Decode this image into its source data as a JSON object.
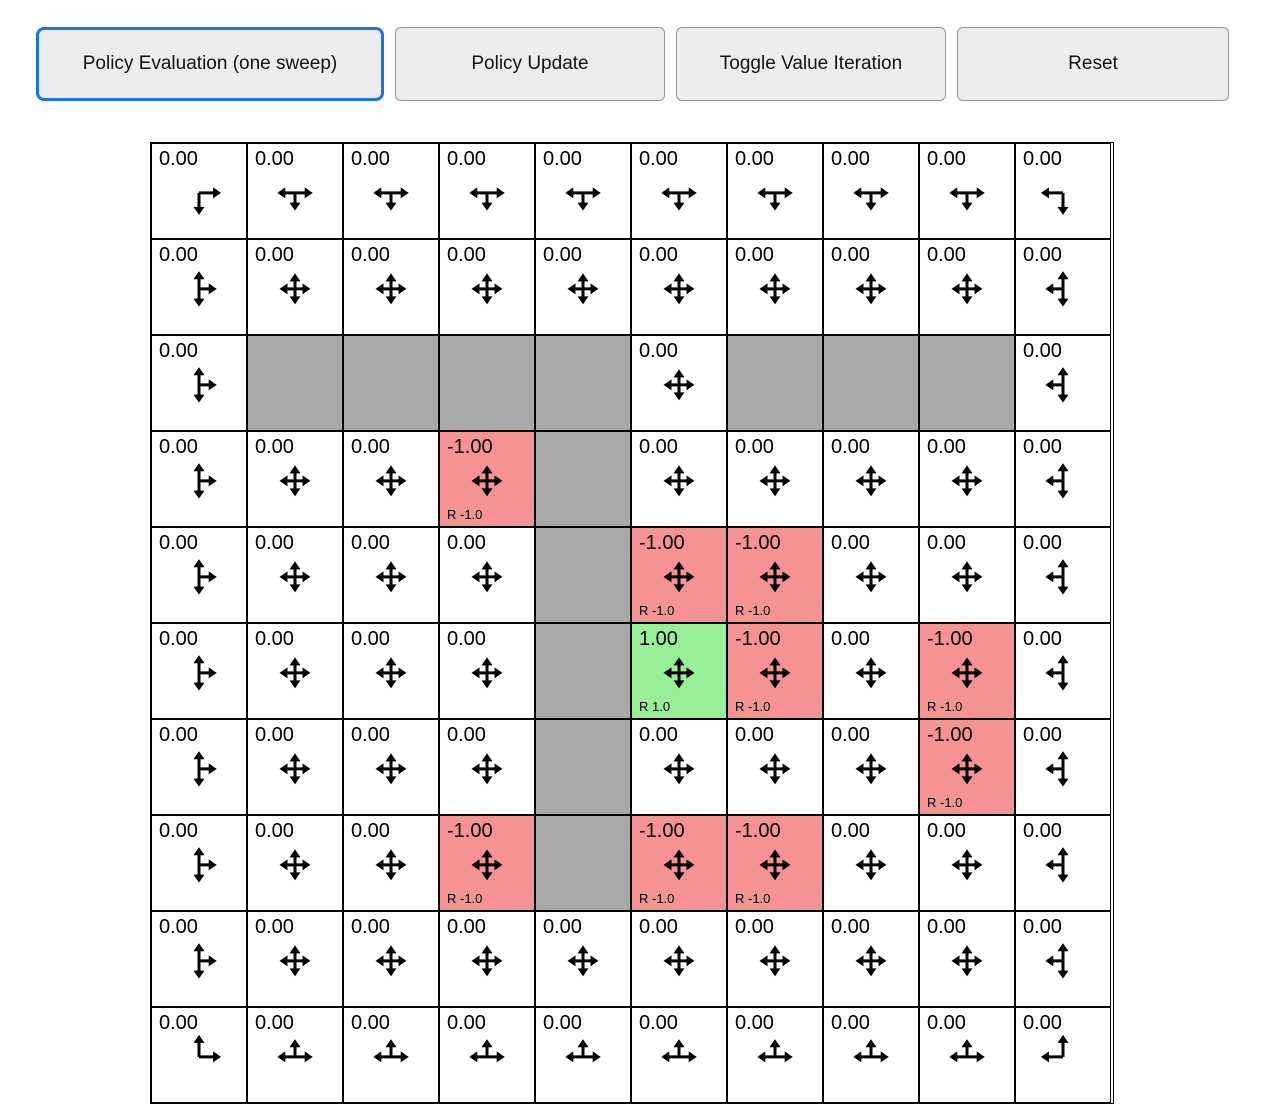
{
  "toolbar": {
    "buttons": [
      {
        "label": "Policy Evaluation (one sweep)",
        "focused": true
      },
      {
        "label": "Policy Update",
        "focused": false
      },
      {
        "label": "Toggle Value Iteration",
        "focused": false
      },
      {
        "label": "Reset",
        "focused": false
      }
    ]
  },
  "colors": {
    "accent_focus": "#1a73e8",
    "wall": "#a9a9a9",
    "negative_cell": "#f59393",
    "positive_cell": "#97ef97",
    "grid_line": "#000000"
  },
  "grid": {
    "rows": 10,
    "cols": 10,
    "cells": [
      [
        {
          "v": "0.00",
          "dirs": "DR"
        },
        {
          "v": "0.00",
          "dirs": "DLR"
        },
        {
          "v": "0.00",
          "dirs": "DLR"
        },
        {
          "v": "0.00",
          "dirs": "DLR"
        },
        {
          "v": "0.00",
          "dirs": "DLR"
        },
        {
          "v": "0.00",
          "dirs": "DLR"
        },
        {
          "v": "0.00",
          "dirs": "DLR"
        },
        {
          "v": "0.00",
          "dirs": "DLR"
        },
        {
          "v": "0.00",
          "dirs": "DLR"
        },
        {
          "v": "0.00",
          "dirs": "DL"
        }
      ],
      [
        {
          "v": "0.00",
          "dirs": "UDR"
        },
        {
          "v": "0.00",
          "dirs": "UDLR"
        },
        {
          "v": "0.00",
          "dirs": "UDLR"
        },
        {
          "v": "0.00",
          "dirs": "UDLR"
        },
        {
          "v": "0.00",
          "dirs": "UDLR"
        },
        {
          "v": "0.00",
          "dirs": "UDLR"
        },
        {
          "v": "0.00",
          "dirs": "UDLR"
        },
        {
          "v": "0.00",
          "dirs": "UDLR"
        },
        {
          "v": "0.00",
          "dirs": "UDLR"
        },
        {
          "v": "0.00",
          "dirs": "UDL"
        }
      ],
      [
        {
          "v": "0.00",
          "dirs": "UDR"
        },
        {
          "wall": true
        },
        {
          "wall": true
        },
        {
          "wall": true
        },
        {
          "wall": true
        },
        {
          "v": "0.00",
          "dirs": "UDLR"
        },
        {
          "wall": true
        },
        {
          "wall": true
        },
        {
          "wall": true
        },
        {
          "v": "0.00",
          "dirs": "UDL"
        }
      ],
      [
        {
          "v": "0.00",
          "dirs": "UDR"
        },
        {
          "v": "0.00",
          "dirs": "UDLR"
        },
        {
          "v": "0.00",
          "dirs": "UDLR"
        },
        {
          "v": "-1.00",
          "dirs": "UDLR",
          "bg": "neg",
          "rw": "R -1.0"
        },
        {
          "wall": true
        },
        {
          "v": "0.00",
          "dirs": "UDLR"
        },
        {
          "v": "0.00",
          "dirs": "UDLR"
        },
        {
          "v": "0.00",
          "dirs": "UDLR"
        },
        {
          "v": "0.00",
          "dirs": "UDLR"
        },
        {
          "v": "0.00",
          "dirs": "UDL"
        }
      ],
      [
        {
          "v": "0.00",
          "dirs": "UDR"
        },
        {
          "v": "0.00",
          "dirs": "UDLR"
        },
        {
          "v": "0.00",
          "dirs": "UDLR"
        },
        {
          "v": "0.00",
          "dirs": "UDLR"
        },
        {
          "wall": true
        },
        {
          "v": "-1.00",
          "dirs": "UDLR",
          "bg": "neg",
          "rw": "R -1.0"
        },
        {
          "v": "-1.00",
          "dirs": "UDLR",
          "bg": "neg",
          "rw": "R -1.0"
        },
        {
          "v": "0.00",
          "dirs": "UDLR"
        },
        {
          "v": "0.00",
          "dirs": "UDLR"
        },
        {
          "v": "0.00",
          "dirs": "UDL"
        }
      ],
      [
        {
          "v": "0.00",
          "dirs": "UDR"
        },
        {
          "v": "0.00",
          "dirs": "UDLR"
        },
        {
          "v": "0.00",
          "dirs": "UDLR"
        },
        {
          "v": "0.00",
          "dirs": "UDLR"
        },
        {
          "wall": true
        },
        {
          "v": "1.00",
          "dirs": "UDLR",
          "bg": "pos",
          "rw": "R 1.0"
        },
        {
          "v": "-1.00",
          "dirs": "UDLR",
          "bg": "neg",
          "rw": "R -1.0"
        },
        {
          "v": "0.00",
          "dirs": "UDLR"
        },
        {
          "v": "-1.00",
          "dirs": "UDLR",
          "bg": "neg",
          "rw": "R -1.0"
        },
        {
          "v": "0.00",
          "dirs": "UDL"
        }
      ],
      [
        {
          "v": "0.00",
          "dirs": "UDR"
        },
        {
          "v": "0.00",
          "dirs": "UDLR"
        },
        {
          "v": "0.00",
          "dirs": "UDLR"
        },
        {
          "v": "0.00",
          "dirs": "UDLR"
        },
        {
          "wall": true
        },
        {
          "v": "0.00",
          "dirs": "UDLR"
        },
        {
          "v": "0.00",
          "dirs": "UDLR"
        },
        {
          "v": "0.00",
          "dirs": "UDLR"
        },
        {
          "v": "-1.00",
          "dirs": "UDLR",
          "bg": "neg",
          "rw": "R -1.0"
        },
        {
          "v": "0.00",
          "dirs": "UDL"
        }
      ],
      [
        {
          "v": "0.00",
          "dirs": "UDR"
        },
        {
          "v": "0.00",
          "dirs": "UDLR"
        },
        {
          "v": "0.00",
          "dirs": "UDLR"
        },
        {
          "v": "-1.00",
          "dirs": "UDLR",
          "bg": "neg",
          "rw": "R -1.0"
        },
        {
          "wall": true
        },
        {
          "v": "-1.00",
          "dirs": "UDLR",
          "bg": "neg",
          "rw": "R -1.0"
        },
        {
          "v": "-1.00",
          "dirs": "UDLR",
          "bg": "neg",
          "rw": "R -1.0"
        },
        {
          "v": "0.00",
          "dirs": "UDLR"
        },
        {
          "v": "0.00",
          "dirs": "UDLR"
        },
        {
          "v": "0.00",
          "dirs": "UDL"
        }
      ],
      [
        {
          "v": "0.00",
          "dirs": "UDR"
        },
        {
          "v": "0.00",
          "dirs": "UDLR"
        },
        {
          "v": "0.00",
          "dirs": "UDLR"
        },
        {
          "v": "0.00",
          "dirs": "UDLR"
        },
        {
          "v": "0.00",
          "dirs": "UDLR"
        },
        {
          "v": "0.00",
          "dirs": "UDLR"
        },
        {
          "v": "0.00",
          "dirs": "UDLR"
        },
        {
          "v": "0.00",
          "dirs": "UDLR"
        },
        {
          "v": "0.00",
          "dirs": "UDLR"
        },
        {
          "v": "0.00",
          "dirs": "UDL"
        }
      ],
      [
        {
          "v": "0.00",
          "dirs": "UR"
        },
        {
          "v": "0.00",
          "dirs": "ULR"
        },
        {
          "v": "0.00",
          "dirs": "ULR"
        },
        {
          "v": "0.00",
          "dirs": "ULR"
        },
        {
          "v": "0.00",
          "dirs": "ULR"
        },
        {
          "v": "0.00",
          "dirs": "ULR"
        },
        {
          "v": "0.00",
          "dirs": "ULR"
        },
        {
          "v": "0.00",
          "dirs": "ULR"
        },
        {
          "v": "0.00",
          "dirs": "ULR"
        },
        {
          "v": "0.00",
          "dirs": "UL"
        }
      ]
    ]
  }
}
